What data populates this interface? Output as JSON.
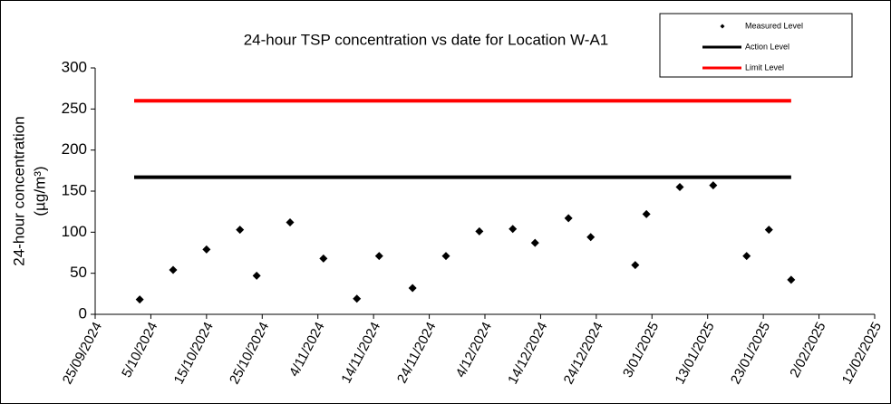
{
  "chart_data": {
    "type": "scatter",
    "title": "24-hour TSP concentration vs date for Location W-A1",
    "ylabel": [
      "24-hour concentration",
      "(µg/m³)"
    ],
    "xlim": [
      "2024-09-25",
      "2025-02-12"
    ],
    "xticks": [
      {
        "value": "2024-09-25",
        "label": "25/09/2024"
      },
      {
        "value": "2024-10-05",
        "label": "5/10/2024"
      },
      {
        "value": "2024-10-15",
        "label": "15/10/2024"
      },
      {
        "value": "2024-10-25",
        "label": "25/10/2024"
      },
      {
        "value": "2024-11-04",
        "label": "4/11/2024"
      },
      {
        "value": "2024-11-14",
        "label": "14/11/2024"
      },
      {
        "value": "2024-11-24",
        "label": "24/11/2024"
      },
      {
        "value": "2024-12-04",
        "label": "4/12/2024"
      },
      {
        "value": "2024-12-14",
        "label": "14/12/2024"
      },
      {
        "value": "2024-12-24",
        "label": "24/12/2024"
      },
      {
        "value": "2025-01-03",
        "label": "3/01/2025"
      },
      {
        "value": "2025-01-13",
        "label": "13/01/2025"
      },
      {
        "value": "2025-01-23",
        "label": "23/01/2025"
      },
      {
        "value": "2025-02-02",
        "label": "2/02/2025"
      },
      {
        "value": "2025-02-12",
        "label": "12/02/2025"
      }
    ],
    "ylim": [
      0,
      300
    ],
    "yticks": [
      0,
      50,
      100,
      150,
      200,
      250,
      300
    ],
    "series": [
      {
        "name": "Measured Level",
        "color": "#000000",
        "mode": "markers",
        "x": [
          "2024-10-03",
          "2024-10-09",
          "2024-10-15",
          "2024-10-21",
          "2024-10-24",
          "2024-10-30",
          "2024-11-05",
          "2024-11-11",
          "2024-11-15",
          "2024-11-21",
          "2024-11-27",
          "2024-12-03",
          "2024-12-09",
          "2024-12-13",
          "2024-12-19",
          "2024-12-23",
          "2024-12-31",
          "2025-01-02",
          "2025-01-08",
          "2025-01-14",
          "2025-01-20",
          "2025-01-24",
          "2025-01-28"
        ],
        "values": [
          18,
          54,
          79,
          103,
          47,
          112,
          68,
          19,
          71,
          32,
          71,
          101,
          104,
          87,
          117,
          94,
          60,
          122,
          155,
          157,
          71,
          103,
          42
        ]
      },
      {
        "name": "Action Level",
        "color": "#000000",
        "mode": "line",
        "x": [
          "2024-10-02",
          "2025-01-28"
        ],
        "values": [
          167,
          167
        ]
      },
      {
        "name": "Limit Level",
        "color": "#ff0000",
        "mode": "line",
        "x": [
          "2024-10-02",
          "2025-01-28"
        ],
        "values": [
          260,
          260
        ]
      }
    ]
  }
}
